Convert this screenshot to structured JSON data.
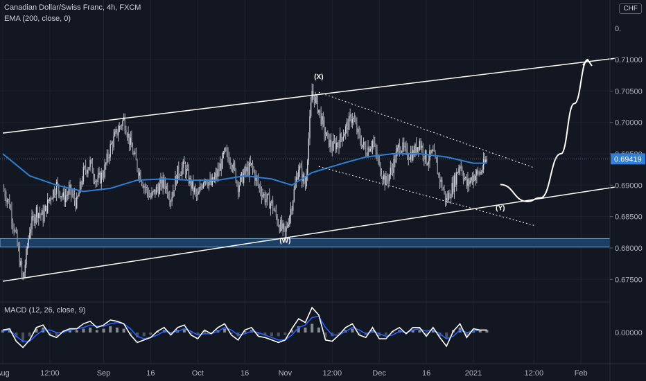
{
  "header": {
    "symbol_line": "Canadian Dollar/Swiss Franc, 4h, FXCM",
    "ema_line": "EMA (200, close, 0)",
    "macd_line": "MACD (12, 26, close, 9)",
    "currency": "CHF",
    "truncated_top_price": "0."
  },
  "colors": {
    "background": "#131722",
    "grid": "#1e222d",
    "candles": "#b2b5be",
    "ema": "#2f7fd6",
    "support_zone": "#1c3f66",
    "support_zone_border": "#7fa6d0",
    "channel": "#ffffff",
    "macd_line": "#ffffff",
    "signal_line": "#2962ff",
    "hist_up": "#a0a4ab",
    "hist_down": "#5d606b",
    "price_badge": "#2f7fd6"
  },
  "chart_data": {
    "type": "candlestick",
    "title": "Canadian Dollar/Swiss Franc, 4h, FXCM",
    "x_axis_labels": [
      "Aug",
      "12:00",
      "Sep",
      "16",
      "Oct",
      "16",
      "Nov",
      "12:00",
      "Dec",
      "16",
      "2021",
      "12:00",
      "Feb"
    ],
    "y_axis_labels": [
      "0.71000",
      "0.70500",
      "0.70000",
      "0.69500",
      "0.69000",
      "0.68500",
      "0.68000",
      "0.67500"
    ],
    "ylim": [
      0.6715,
      0.7195
    ],
    "price_path": [
      [
        0,
        0.6895
      ],
      [
        1,
        0.687
      ],
      [
        2,
        0.6815
      ],
      [
        3,
        0.6748
      ],
      [
        4,
        0.683
      ],
      [
        5,
        0.686
      ],
      [
        6,
        0.685
      ],
      [
        7,
        0.688
      ],
      [
        8,
        0.69
      ],
      [
        9,
        0.688
      ],
      [
        10,
        0.689
      ],
      [
        11,
        0.687
      ],
      [
        12,
        0.692
      ],
      [
        13,
        0.6935
      ],
      [
        14,
        0.6905
      ],
      [
        15,
        0.692
      ],
      [
        16,
        0.696
      ],
      [
        17,
        0.6985
      ],
      [
        18,
        0.7005
      ],
      [
        19,
        0.6965
      ],
      [
        20,
        0.693
      ],
      [
        21,
        0.69
      ],
      [
        22,
        0.688
      ],
      [
        23,
        0.6895
      ],
      [
        24,
        0.6905
      ],
      [
        25,
        0.688
      ],
      [
        26,
        0.692
      ],
      [
        27,
        0.693
      ],
      [
        28,
        0.69
      ],
      [
        29,
        0.688
      ],
      [
        30,
        0.6915
      ],
      [
        31,
        0.69
      ],
      [
        32,
        0.692
      ],
      [
        33,
        0.695
      ],
      [
        34,
        0.694
      ],
      [
        35,
        0.69
      ],
      [
        36,
        0.692
      ],
      [
        37,
        0.693
      ],
      [
        38,
        0.69
      ],
      [
        39,
        0.688
      ],
      [
        40,
        0.687
      ],
      [
        41,
        0.684
      ],
      [
        42,
        0.6822
      ],
      [
        43,
        0.687
      ],
      [
        44,
        0.693
      ],
      [
        45,
        0.69
      ],
      [
        46,
        0.705
      ],
      [
        47,
        0.702
      ],
      [
        48,
        0.698
      ],
      [
        49,
        0.696
      ],
      [
        50,
        0.697
      ],
      [
        51,
        0.699
      ],
      [
        52,
        0.701
      ],
      [
        53,
        0.6975
      ],
      [
        54,
        0.6955
      ],
      [
        55,
        0.697
      ],
      [
        56,
        0.693
      ],
      [
        57,
        0.6905
      ],
      [
        58,
        0.693
      ],
      [
        59,
        0.6965
      ],
      [
        60,
        0.695
      ],
      [
        61,
        0.695
      ],
      [
        62,
        0.697
      ],
      [
        63,
        0.694
      ],
      [
        64,
        0.695
      ],
      [
        65,
        0.691
      ],
      [
        66,
        0.6875
      ],
      [
        67,
        0.69
      ],
      [
        68,
        0.6935
      ],
      [
        69,
        0.69
      ],
      [
        70,
        0.6915
      ],
      [
        71,
        0.692
      ],
      [
        72,
        0.6942
      ]
    ],
    "ema": [
      [
        0,
        0.695
      ],
      [
        4,
        0.6915
      ],
      [
        8,
        0.69
      ],
      [
        12,
        0.689
      ],
      [
        16,
        0.6895
      ],
      [
        20,
        0.6908
      ],
      [
        24,
        0.691
      ],
      [
        28,
        0.6908
      ],
      [
        32,
        0.6908
      ],
      [
        36,
        0.6915
      ],
      [
        40,
        0.691
      ],
      [
        43,
        0.69
      ],
      [
        46,
        0.692
      ],
      [
        50,
        0.6933
      ],
      [
        54,
        0.6945
      ],
      [
        58,
        0.695
      ],
      [
        62,
        0.695
      ],
      [
        66,
        0.6945
      ],
      [
        70,
        0.6935
      ],
      [
        72,
        0.6935
      ]
    ],
    "last_price": "0.69419",
    "support_zone": [
      0.68015,
      0.6815
    ],
    "channel_upper": [
      [
        0,
        0.6983
      ],
      [
        91,
        0.7102
      ]
    ],
    "channel_lower": [
      [
        0,
        0.6747
      ],
      [
        91,
        0.6897
      ]
    ],
    "wedge_upper": [
      [
        47,
        0.7048
      ],
      [
        79,
        0.6928
      ]
    ],
    "wedge_lower": [
      [
        47,
        0.693
      ],
      [
        79,
        0.6836
      ]
    ],
    "projection": [
      [
        74,
        0.6901
      ],
      [
        78,
        0.6874
      ],
      [
        80,
        0.688
      ],
      [
        83,
        0.695
      ],
      [
        85,
        0.703
      ],
      [
        87,
        0.71
      ]
    ],
    "annotations": [
      {
        "label": "(X)",
        "x": 47,
        "y": 0.7069
      },
      {
        "label": "(W)",
        "x": 42,
        "y": 0.6808
      },
      {
        "label": "(Y)",
        "x": 74,
        "y": 0.686
      }
    ],
    "macd": {
      "ylabel": "0.00000",
      "histogram": [
        0.0002,
        0.0003,
        -0.0004,
        -0.0008,
        -0.0003,
        0.0003,
        0.0004,
        -0.0002,
        -0.0003,
        0.0001,
        0.0002,
        0.0002,
        0.0003,
        0.0004,
        0.0002,
        0.0003,
        0.0005,
        0.0004,
        0.0003,
        -0.0002,
        -0.0004,
        -0.0003,
        -0.0002,
        0.0001,
        0.0002,
        -0.0001,
        0.0002,
        0.0003,
        -0.0001,
        -0.0002,
        0.0001,
        -0.0001,
        0.0002,
        0.0003,
        -0.0001,
        -0.0003,
        0.0001,
        0.0002,
        -0.0002,
        -0.0002,
        -0.0003,
        -0.0003,
        -0.0002,
        0.0002,
        0.0005,
        0.0004,
        0.0007,
        0.0004,
        -0.0004,
        -0.0003,
        -0.0001,
        0.0002,
        0.0003,
        -0.0002,
        -0.0002,
        0.0002,
        -0.0003,
        -0.0002,
        0.0001,
        0.0002,
        -0.0001,
        0.0002,
        0.0002,
        -0.0002,
        0.0002,
        -0.0003,
        -0.0005,
        0.0002,
        0.0004,
        -0.0003,
        0.0002,
        0.0002,
        0.0002
      ],
      "macd_line": [
        0.0002,
        0.0003,
        -0.0007,
        -0.0012,
        -0.0006,
        0.0004,
        0.0006,
        -0.0002,
        -0.0004,
        0.0001,
        0.0003,
        0.0003,
        0.0007,
        0.0009,
        0.0004,
        0.0006,
        0.001,
        0.0009,
        0.0007,
        -0.0002,
        -0.0008,
        -0.0006,
        -0.0004,
        0.0001,
        0.0004,
        -0.0002,
        0.0004,
        0.0006,
        -0.0002,
        -0.0005,
        0.0002,
        -0.0001,
        0.0004,
        0.0007,
        -0.0002,
        -0.0006,
        0.0002,
        0.0004,
        -0.0003,
        -0.0004,
        -0.0006,
        -0.0008,
        -0.0006,
        0.0003,
        0.0011,
        0.0008,
        0.002,
        0.0014,
        -0.0006,
        -0.0007,
        -0.0002,
        0.0004,
        0.0007,
        -0.0002,
        -0.0004,
        0.0004,
        -0.0005,
        -0.0005,
        0.0001,
        0.0004,
        -0.0001,
        0.0004,
        0.0004,
        -0.0003,
        0.0004,
        -0.0004,
        -0.0011,
        0.0001,
        0.0007,
        -0.0004,
        0.0003,
        0.0002,
        0.0002
      ],
      "signal_line": [
        0.0001,
        0.0002,
        -0.0003,
        -0.0007,
        -0.0007,
        -0.0002,
        0.0002,
        0.0002,
        0.0,
        0.0,
        0.0002,
        0.0003,
        0.0004,
        0.0006,
        0.0005,
        0.0005,
        0.0007,
        0.0008,
        0.0007,
        0.0003,
        -0.0003,
        -0.0005,
        -0.0004,
        -0.0002,
        0.0001,
        0.0,
        0.0001,
        0.0003,
        0.0001,
        -0.0002,
        -0.0001,
        -0.0001,
        0.0001,
        0.0004,
        0.0002,
        -0.0002,
        -0.0001,
        0.0001,
        0.0,
        -0.0002,
        -0.0004,
        -0.0006,
        -0.0006,
        -0.0002,
        0.0004,
        0.0006,
        0.0012,
        0.0013,
        0.0004,
        -0.0002,
        -0.0002,
        0.0001,
        0.0004,
        0.0002,
        -0.0001,
        0.0001,
        -0.0001,
        -0.0003,
        -0.0002,
        0.0001,
        0.0,
        0.0002,
        0.0003,
        0.0001,
        0.0002,
        -0.0001,
        -0.0005,
        -0.0003,
        0.0002,
        0.0,
        0.0001,
        0.0002,
        0.0002
      ]
    }
  }
}
